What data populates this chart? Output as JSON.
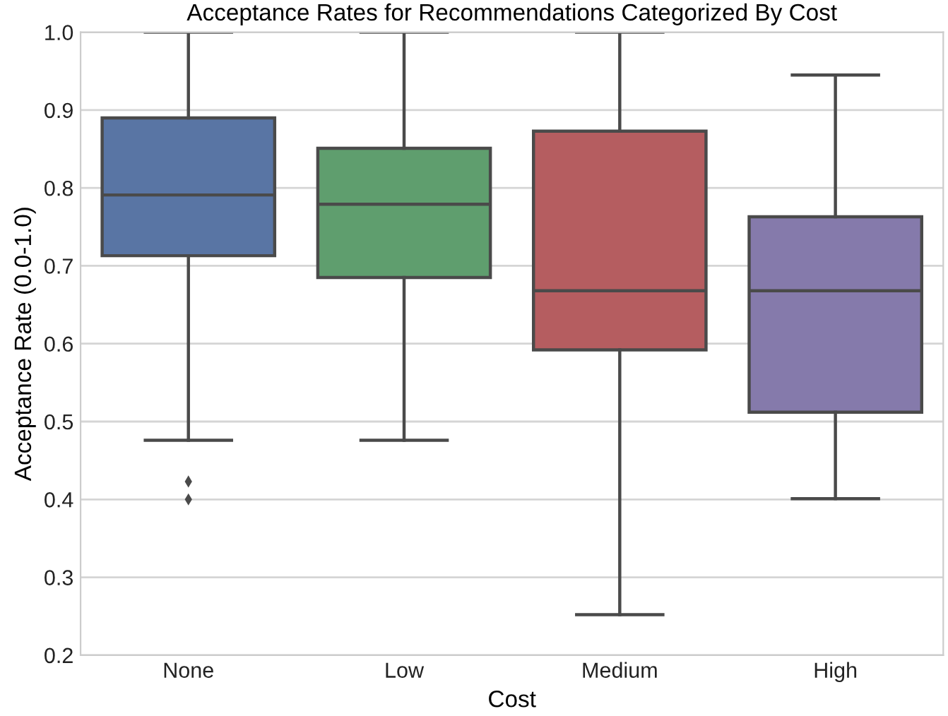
{
  "chart_data": {
    "type": "box",
    "title": "Acceptance Rates for Recommendations Categorized By Cost",
    "xlabel": "Cost",
    "ylabel": "Acceptance Rate (0.0-1.0)",
    "categories": [
      "None",
      "Low",
      "Medium",
      "High"
    ],
    "colors": [
      "#5975a4",
      "#5f9e6e",
      "#b55d60",
      "#857aab"
    ],
    "boxes": [
      {
        "low": 0.476,
        "q1": 0.713,
        "median": 0.791,
        "q3": 0.89,
        "high": 1.0,
        "outliers": [
          0.423,
          0.4
        ]
      },
      {
        "low": 0.476,
        "q1": 0.685,
        "median": 0.779,
        "q3": 0.851,
        "high": 1.0
      },
      {
        "low": 0.252,
        "q1": 0.592,
        "median": 0.668,
        "q3": 0.873,
        "high": 1.0
      },
      {
        "low": 0.401,
        "q1": 0.512,
        "median": 0.668,
        "q3": 0.763,
        "high": 0.945
      }
    ],
    "ylim": [
      0.2,
      1.0
    ],
    "yticks": [
      0.2,
      0.3,
      0.4,
      0.5,
      0.6,
      0.7,
      0.8,
      0.9,
      {
        "value": 1,
        "label": "1.0"
      }
    ],
    "grid": "y"
  }
}
